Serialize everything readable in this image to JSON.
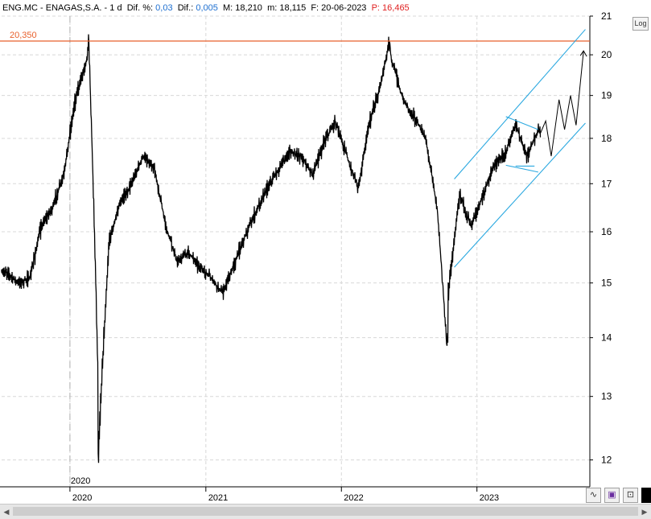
{
  "header": {
    "ticker": "ENG.MC - ENAGAS,S.A.",
    "interval": "1 d",
    "dif_pct_label": "Dif. %:",
    "dif_pct_value": "0,03",
    "dif_label": "Dif.:",
    "dif_value": "0,005",
    "max_label": "M:",
    "max_value": "18,210",
    "min_label": "m:",
    "min_value": "18,115",
    "date_label": "F:",
    "date_value": "20-06-2023",
    "price_label": "P",
    "price_value": "16,465"
  },
  "toolbar": {
    "log_label": "Log",
    "icons": [
      "zigzag-icon",
      "save-icon",
      "pin-icon",
      "black-square-icon"
    ]
  },
  "colors": {
    "price": "#000000",
    "resistance": "#e8602c",
    "channel": "#2aa8e0",
    "grid": "#d8d8d8",
    "info_value": "#1e6fd0",
    "info_price": "#e02020"
  },
  "chart_data": {
    "type": "line",
    "y_scale": "log",
    "ylim": [
      11.6,
      21
    ],
    "y_ticks": [
      12,
      13,
      14,
      15,
      16,
      17,
      18,
      19,
      20,
      21
    ],
    "x_tick_labels": [
      "2020",
      "2021",
      "2022",
      "2023"
    ],
    "x_highlight_label": "2020",
    "grid": true,
    "resistance": {
      "label": "20,350",
      "value": 20.35
    },
    "series": [
      {
        "values_monthly": [
          [
            "2019-07",
            15.2
          ],
          [
            "2019-08",
            15.0
          ],
          [
            "2019-09",
            15.1
          ],
          [
            "2019-10",
            16.1
          ],
          [
            "2019-11",
            16.5
          ],
          [
            "2019-12",
            17.2
          ],
          [
            "2020-01",
            18.9
          ],
          [
            "2020-02",
            19.9
          ],
          [
            "2020-03",
            13.6
          ],
          [
            "2020-04",
            15.8
          ],
          [
            "2020-05",
            16.6
          ],
          [
            "2020-06",
            17.0
          ],
          [
            "2020-07",
            17.6
          ],
          [
            "2020-08",
            17.3
          ],
          [
            "2020-09",
            16.1
          ],
          [
            "2020-10",
            15.4
          ],
          [
            "2020-11",
            15.6
          ],
          [
            "2020-12",
            15.3
          ],
          [
            "2021-01",
            15.1
          ],
          [
            "2021-02",
            14.8
          ],
          [
            "2021-03",
            15.3
          ],
          [
            "2021-04",
            15.9
          ],
          [
            "2021-05",
            16.4
          ],
          [
            "2021-06",
            16.9
          ],
          [
            "2021-07",
            17.3
          ],
          [
            "2021-08",
            17.7
          ],
          [
            "2021-09",
            17.6
          ],
          [
            "2021-10",
            17.2
          ],
          [
            "2021-11",
            17.9
          ],
          [
            "2021-12",
            18.4
          ],
          [
            "2022-01",
            17.6
          ],
          [
            "2022-02",
            16.9
          ],
          [
            "2022-03",
            18.3
          ],
          [
            "2022-04",
            19.2
          ],
          [
            "2022-05",
            19.9
          ],
          [
            "2022-06",
            18.9
          ],
          [
            "2022-07",
            18.5
          ],
          [
            "2022-08",
            18.0
          ],
          [
            "2022-09",
            16.5
          ],
          [
            "2022-10",
            14.8
          ],
          [
            "2022-11",
            16.8
          ],
          [
            "2022-12",
            16.1
          ],
          [
            "2023-01",
            16.7
          ],
          [
            "2023-02",
            17.4
          ],
          [
            "2023-03",
            17.6
          ],
          [
            "2023-04",
            18.3
          ],
          [
            "2023-05",
            17.6
          ],
          [
            "2023-06",
            18.2
          ]
        ],
        "extremes": [
          [
            "2020-02-20",
            20.35
          ],
          [
            "2020-03-16",
            11.95
          ],
          [
            "2022-05-10",
            20.35
          ],
          [
            "2022-10-13",
            13.7
          ]
        ]
      }
    ],
    "channel": {
      "lower": [
        [
          "2022-11-01",
          15.3
        ],
        [
          "2023-10-20",
          18.35
        ]
      ],
      "upper": [
        [
          "2022-11-01",
          17.1
        ],
        [
          "2023-10-20",
          20.65
        ]
      ]
    },
    "triangle": {
      "upper": [
        [
          "2023-03-20",
          18.5
        ],
        [
          "2023-06-15",
          18.2
        ]
      ],
      "lower": [
        [
          "2023-03-20",
          17.4
        ],
        [
          "2023-06-15",
          17.25
        ]
      ],
      "base": [
        [
          "2023-04-15",
          17.38
        ],
        [
          "2023-06-05",
          17.38
        ]
      ]
    },
    "projection": [
      [
        "2023-06-20",
        18.1
      ],
      [
        "2023-07-05",
        18.4
      ],
      [
        "2023-07-20",
        17.6
      ],
      [
        "2023-08-10",
        18.9
      ],
      [
        "2023-08-25",
        18.2
      ],
      [
        "2023-09-10",
        19.0
      ],
      [
        "2023-09-25",
        18.3
      ],
      [
        "2023-10-15",
        20.1
      ]
    ]
  }
}
